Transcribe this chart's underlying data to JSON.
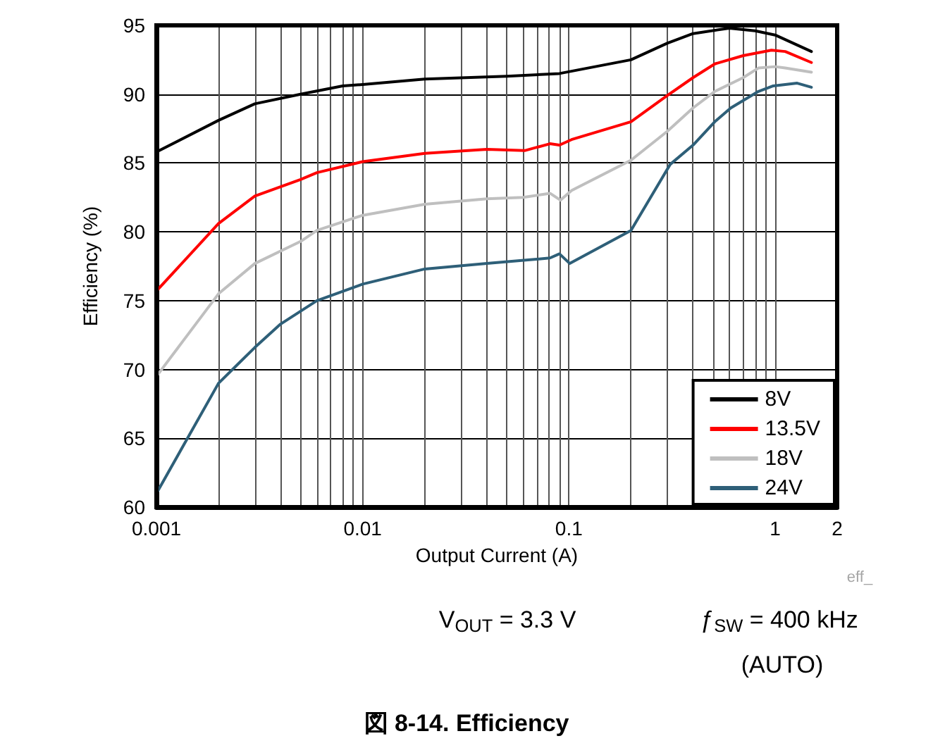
{
  "chart_data": {
    "type": "line",
    "title": "図 8-14. Efficiency",
    "xlabel": "Output Current (A)",
    "ylabel": "Efficiency (%)",
    "log": "x",
    "xlim": [
      0.001,
      2
    ],
    "ylim": [
      60,
      95
    ],
    "xticks": [
      0.001,
      {
        "value": 0.002,
        "label": null
      },
      {
        "value": 0.003,
        "label": null
      },
      {
        "value": 0.004,
        "label": null
      },
      {
        "value": 0.005,
        "label": null
      },
      {
        "value": 0.006,
        "label": null
      },
      {
        "value": 0.007,
        "label": null
      },
      {
        "value": 0.008,
        "label": null
      },
      {
        "value": 0.009,
        "label": null
      },
      0.01,
      {
        "value": 0.02,
        "label": null
      },
      {
        "value": 0.03,
        "label": null
      },
      {
        "value": 0.04,
        "label": null
      },
      {
        "value": 0.05,
        "label": null
      },
      {
        "value": 0.06,
        "label": null
      },
      {
        "value": 0.07,
        "label": null
      },
      {
        "value": 0.08,
        "label": null
      },
      {
        "value": 0.09,
        "label": null
      },
      0.1,
      {
        "value": 0.2,
        "label": null
      },
      {
        "value": 0.3,
        "label": null
      },
      {
        "value": 0.4,
        "label": null
      },
      {
        "value": 0.5,
        "label": null
      },
      {
        "value": 0.6,
        "label": null
      },
      {
        "value": 0.7,
        "label": null
      },
      {
        "value": 0.8,
        "label": null
      },
      {
        "value": 0.9,
        "label": null
      },
      1,
      2
    ],
    "yticks": [
      60,
      65,
      70,
      75,
      80,
      85,
      90,
      95
    ],
    "grid": true,
    "legend": "bottom right",
    "marker": "none",
    "line_style": "solid",
    "annotations": [
      "eff_",
      "V$_{OUT}$ = 3.3 V",
      "ƒ$_{SW}$ = 400 kHz",
      "(AUTO)"
    ],
    "series": [
      {
        "name": "8V",
        "color": "#000000",
        "x": [
          0.001,
          0.002,
          0.003,
          0.005,
          0.008,
          0.01,
          0.02,
          0.05,
          0.09,
          0.2,
          0.3,
          0.4,
          0.6,
          0.8,
          1.0,
          1.5
        ],
        "values": [
          85.8,
          88.1,
          89.3,
          90.0,
          90.6,
          90.7,
          91.1,
          91.3,
          91.5,
          92.5,
          93.7,
          94.4,
          94.8,
          94.6,
          94.3,
          93.1
        ]
      },
      {
        "name": "13.5V",
        "color": "#ff0000",
        "x": [
          0.001,
          0.002,
          0.003,
          0.005,
          0.006,
          0.01,
          0.02,
          0.04,
          0.061,
          0.081,
          0.09,
          0.103,
          0.2,
          0.3,
          0.4,
          0.51,
          0.7,
          0.96,
          1.12,
          1.5
        ],
        "values": [
          75.7,
          80.6,
          82.6,
          83.8,
          84.3,
          85.1,
          85.7,
          86.0,
          85.9,
          86.4,
          86.3,
          86.7,
          88.0,
          89.9,
          91.2,
          92.2,
          92.8,
          93.2,
          93.1,
          92.3
        ]
      },
      {
        "name": "18V",
        "color": "#bfbfbf",
        "x": [
          0.001,
          0.002,
          0.003,
          0.005,
          0.006,
          0.01,
          0.02,
          0.04,
          0.06,
          0.081,
          0.091,
          0.103,
          0.2,
          0.3,
          0.4,
          0.51,
          0.7,
          0.83,
          1.0,
          1.12,
          1.5
        ],
        "values": [
          69.5,
          75.5,
          77.7,
          79.3,
          80.1,
          81.2,
          82.0,
          82.4,
          82.5,
          82.8,
          82.3,
          83.0,
          85.2,
          87.3,
          89.0,
          90.2,
          91.2,
          91.9,
          92.0,
          91.9,
          91.6
        ]
      },
      {
        "name": "24V",
        "color": "#2e5f78",
        "x": [
          0.001,
          0.002,
          0.003,
          0.004,
          0.006,
          0.01,
          0.02,
          0.04,
          0.081,
          0.09,
          0.101,
          0.2,
          0.31,
          0.4,
          0.51,
          0.61,
          0.83,
          0.98,
          1.28,
          1.5
        ],
        "values": [
          61.0,
          69.0,
          71.6,
          73.3,
          75.0,
          76.2,
          77.3,
          77.7,
          78.1,
          78.4,
          77.7,
          80.1,
          84.9,
          86.3,
          88.0,
          89.0,
          90.2,
          90.6,
          90.8,
          90.5
        ]
      }
    ]
  }
}
